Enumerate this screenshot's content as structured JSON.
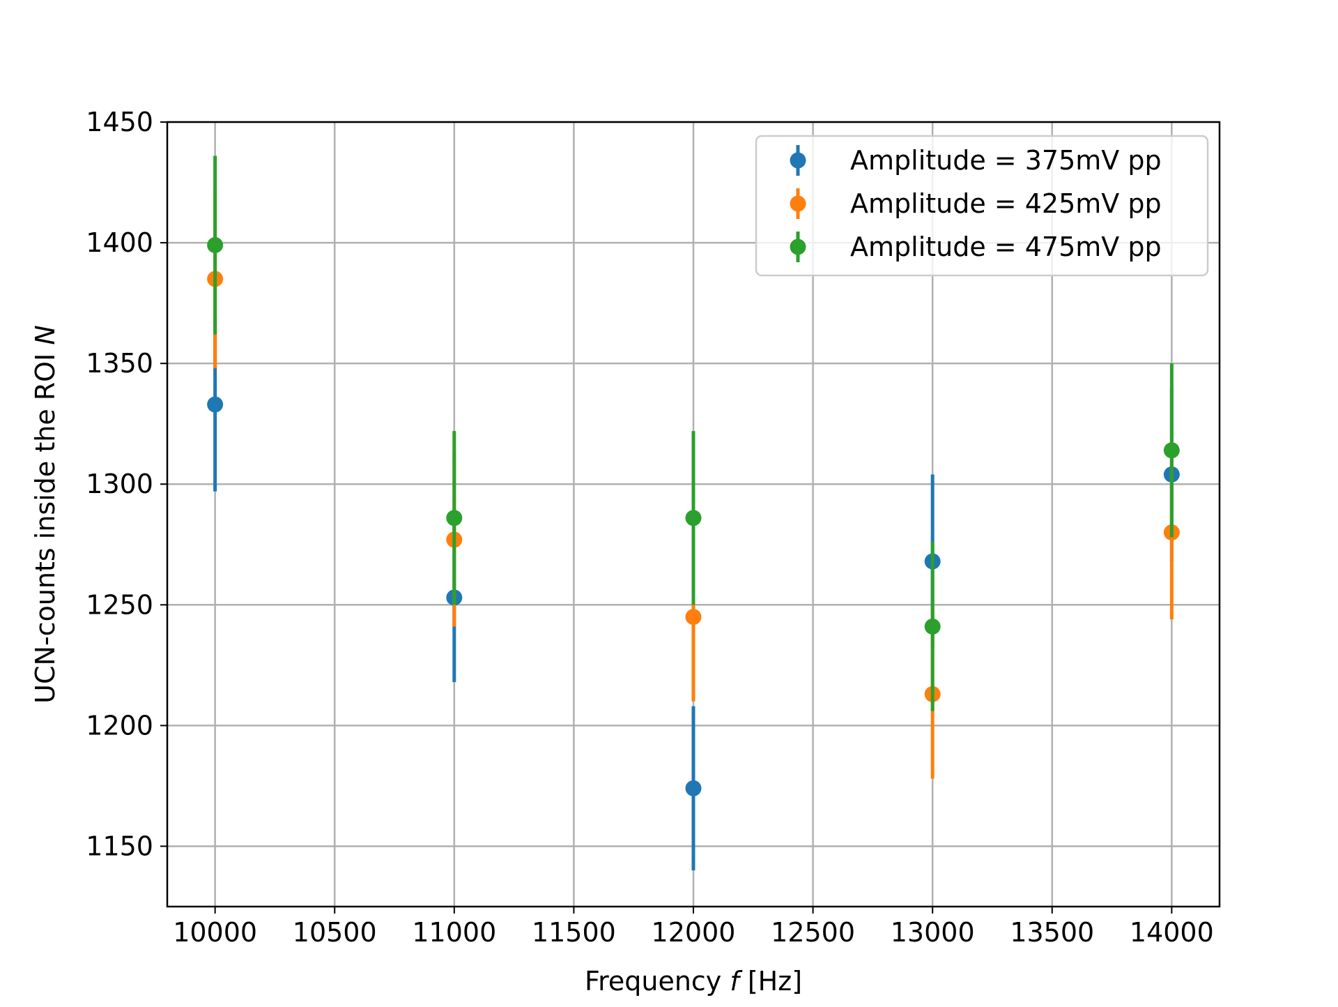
{
  "chart_data": {
    "type": "scatter",
    "title": "",
    "xlabel": "Frequency ",
    "xlabel_symbol": "f",
    "xlabel_unit": " [Hz]",
    "ylabel": "UCN-counts inside the ROI ",
    "ylabel_symbol": "N",
    "xlim": [
      9800,
      14200
    ],
    "ylim": [
      1125,
      1450
    ],
    "x_ticks": [
      10000,
      10500,
      11000,
      11500,
      12000,
      12500,
      13000,
      13500,
      14000
    ],
    "x_tick_labels": [
      "10000",
      "10500",
      "11000",
      "11500",
      "12000",
      "12500",
      "13000",
      "13500",
      "14000"
    ],
    "y_ticks": [
      1150,
      1200,
      1250,
      1300,
      1350,
      1400,
      1450
    ],
    "y_tick_labels": [
      "1150",
      "1200",
      "1250",
      "1300",
      "1350",
      "1400",
      "1450"
    ],
    "grid": true,
    "legend_position": "top-right",
    "series": [
      {
        "name": "Amplitude = 375mV pp",
        "color": "#1f77b4",
        "x": [
          10000,
          11000,
          12000,
          13000,
          14000
        ],
        "y": [
          1333,
          1253,
          1174,
          1268,
          1304
        ],
        "yerr": [
          36,
          35,
          34,
          36,
          36
        ]
      },
      {
        "name": "Amplitude = 425mV pp",
        "color": "#ff7f0e",
        "x": [
          10000,
          11000,
          12000,
          13000,
          14000
        ],
        "y": [
          1385,
          1277,
          1245,
          1213,
          1280
        ],
        "yerr": [
          37,
          36,
          35,
          35,
          36
        ]
      },
      {
        "name": "Amplitude = 475mV pp",
        "color": "#2ca02c",
        "x": [
          10000,
          11000,
          12000,
          13000,
          14000
        ],
        "y": [
          1399,
          1286,
          1286,
          1241,
          1314
        ],
        "yerr": [
          37,
          36,
          36,
          35,
          36
        ]
      }
    ]
  }
}
